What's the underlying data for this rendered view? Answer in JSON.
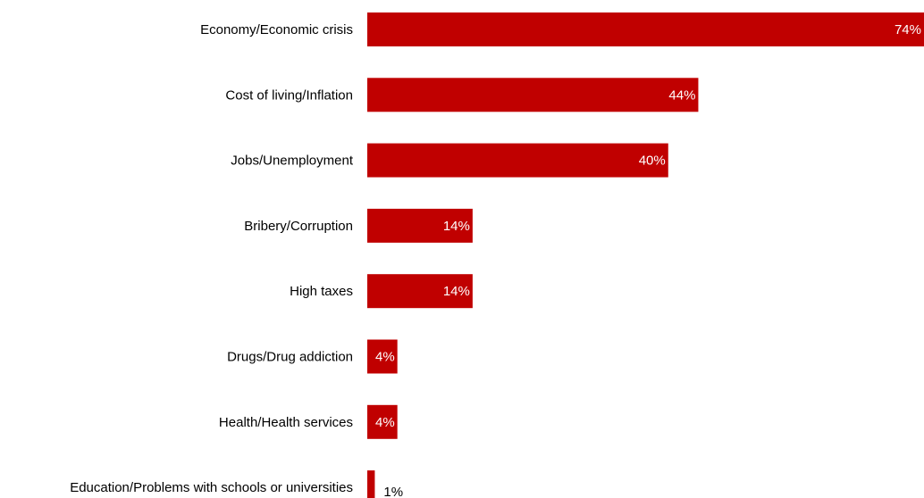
{
  "chart_data": {
    "type": "bar",
    "orientation": "horizontal",
    "categories": [
      "Economy/Economic crisis",
      "Cost of living/Inflation",
      "Jobs/Unemployment",
      "Bribery/Corruption",
      "High taxes",
      "Drugs/Drug addiction",
      "Health/Health services",
      "Education/Problems with schools or universities"
    ],
    "values": [
      74,
      44,
      40,
      14,
      14,
      4,
      4,
      1
    ],
    "value_labels": [
      "74%",
      "44%",
      "40%",
      "14%",
      "14%",
      "4%",
      "4%",
      "1%"
    ],
    "value_unit": "%",
    "xlim": [
      0,
      74
    ],
    "grid": false,
    "legend": "none",
    "colors": {
      "bar": "#c00000",
      "label_inside": "#ffffff",
      "label_outside": "#000000",
      "text": "#000000"
    }
  }
}
